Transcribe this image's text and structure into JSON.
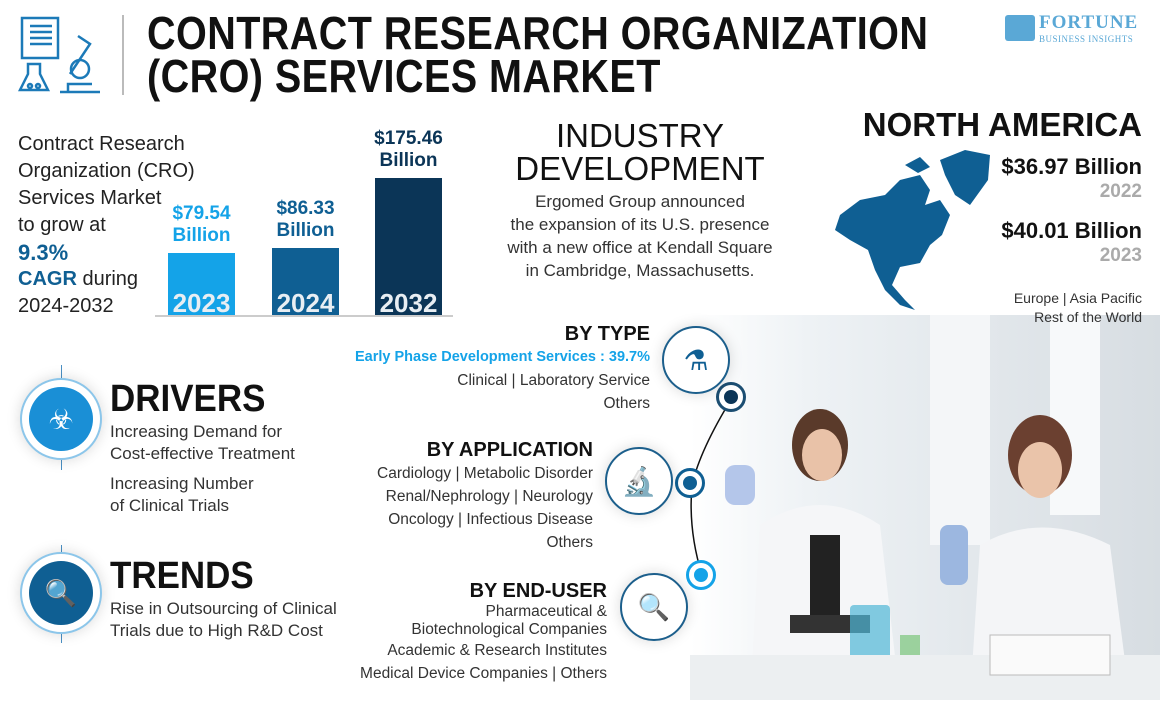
{
  "header": {
    "title_line1": "CONTRACT RESEARCH ORGANIZATION",
    "title_line2": "(CRO) SERVICES MARKET",
    "brand": "FORTUNE",
    "brand_sub": "BUSINESS INSIGHTS"
  },
  "summary": {
    "line1": "Contract Research",
    "line2": "Organization (CRO)",
    "line3": "Services Market",
    "line4": "to grow at",
    "cagr": "9.3%",
    "cagr_label": "CAGR",
    "during": " during",
    "period": "2024-2032"
  },
  "chart_data": {
    "type": "bar",
    "categories": [
      "2023",
      "2024",
      "2032"
    ],
    "values": [
      79.54,
      86.33,
      175.46
    ],
    "data_labels": [
      [
        "$79.54",
        "Billion"
      ],
      [
        "$86.33",
        "Billion"
      ],
      [
        "$175.46",
        "Billion"
      ]
    ],
    "colors": [
      "#14a3e8",
      "#0f5f93",
      "#0b3557"
    ],
    "unit": "USD Billion"
  },
  "industry": {
    "title1": "INDUSTRY",
    "title2": "DEVELOPMENT",
    "lines": [
      "Ergomed Group announced",
      "the expansion of its U.S. presence",
      "with a new office at Kendall Square",
      "in Cambridge, Massachusetts."
    ]
  },
  "region": {
    "title": "NORTH AMERICA",
    "value1": "$36.97 Billion",
    "year1": "2022",
    "value2": "$40.01 Billion",
    "year2": "2023",
    "others1": "Europe  |  Asia Pacific",
    "others2": "Rest of the World"
  },
  "drivers": {
    "title": "DRIVERS",
    "items": [
      [
        "Increasing Demand for",
        "Cost-effective Treatment"
      ],
      [
        "Increasing Number",
        "of Clinical Trials"
      ]
    ]
  },
  "trends": {
    "title": "TRENDS",
    "items": [
      [
        "Rise in Outsourcing of Clinical",
        "Trials due to High R&D Cost"
      ]
    ]
  },
  "segments": {
    "type": {
      "title": "BY TYPE",
      "highlight": "Early Phase Development Services : 39.7%",
      "lines": [
        "Clinical  |  Laboratory Service",
        "Others"
      ]
    },
    "application": {
      "title": "BY APPLICATION",
      "lines": [
        "Cardiology  |  Metabolic Disorder",
        "Renal/Nephrology  |  Neurology",
        "Oncology  |  Infectious Disease",
        "Others"
      ]
    },
    "enduser": {
      "title": "BY END-USER",
      "lines": [
        "Pharmaceutical &",
        "Biotechnological Companies",
        "Academic & Research Institutes",
        "Medical Device Companies  |  Others"
      ]
    }
  },
  "colors": {
    "accent": "#14a3e8",
    "dark": "#0f5f93",
    "navy": "#0b3557"
  }
}
